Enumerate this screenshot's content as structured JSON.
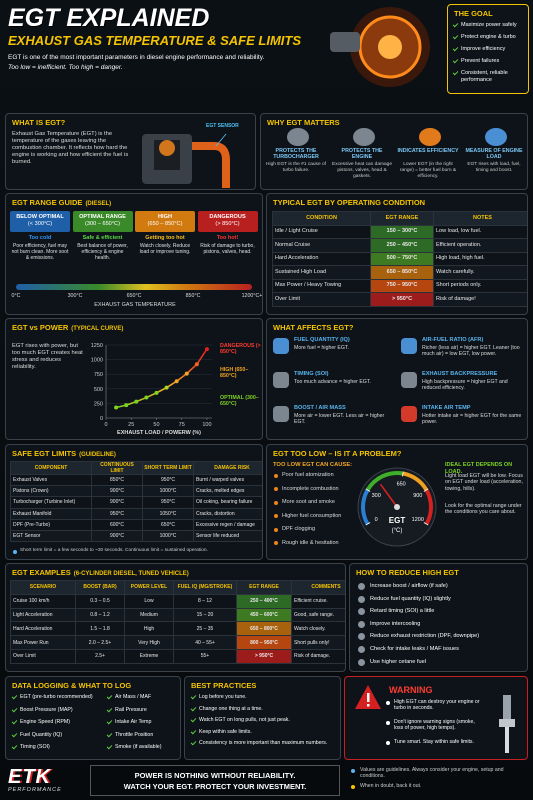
{
  "header": {
    "title": "EGT EXPLAINED",
    "subtitle": "EXHAUST GAS TEMPERATURE & SAFE LIMITS",
    "intro": "EGT is one of the most important parameters in diesel engine performance and reliability.",
    "tagline": "Too low = inefficient. Too high = danger."
  },
  "goal": {
    "title": "THE GOAL",
    "items": [
      "Maximize power safely",
      "Protect engine & turbo",
      "Improve efficiency",
      "Prevent failures",
      "Consistent, reliable performance"
    ]
  },
  "what_is": {
    "title": "WHAT IS EGT?",
    "text": "Exhaust Gas Temperature (EGT) is the temperature of the gases leaving the combustion chamber. It reflects how hard the engine is working and how efficient the fuel is burned.",
    "sensor_label": "EGT SENSOR"
  },
  "why_matters": {
    "title": "WHY EGT MATTERS",
    "items": [
      {
        "title": "PROTECTS THE TURBOCHARGER",
        "text": "High EGT is the #1 cause of turbo failure."
      },
      {
        "title": "PROTECTS THE ENGINE",
        "text": "Excessive heat can damage pistons, valves, head & gaskets."
      },
      {
        "title": "INDICATES EFFICIENCY",
        "text": "Lower EGT (in the right range) = better fuel burn & efficiency."
      },
      {
        "title": "MEASURE OF ENGINE LOAD",
        "text": "EGT rises with load, fuel, timing and boost."
      }
    ]
  },
  "range_guide": {
    "title": "EGT RANGE GUIDE",
    "qualifier": "(DIESEL)",
    "columns": [
      {
        "name": "BELOW OPTIMAL",
        "range": "(< 300°C)",
        "status": "Too cold",
        "text": "Poor efficiency, fuel may not burn clean. More soot & emissions.",
        "color": "#1f5fa8"
      },
      {
        "name": "OPTIMAL RANGE",
        "range": "(300 – 650°C)",
        "status": "Safe & efficient",
        "text": "Best balance of power, efficiency & engine health.",
        "color": "#3a8a2a"
      },
      {
        "name": "HIGH",
        "range": "(650 – 850°C)",
        "status": "Getting too hot",
        "text": "Watch closely. Reduce load or improve tuning.",
        "color": "#d07a10"
      },
      {
        "name": "DANGEROUS",
        "range": "(> 850°C)",
        "status": "Too hot!",
        "text": "Risk of damage to turbo, pistons, valves, head.",
        "color": "#b82020"
      }
    ],
    "scale_labels": [
      "0°C",
      "300°C",
      "650°C",
      "850°C",
      "1200°C+"
    ],
    "axis_label": "EXHAUST GAS TEMPERATURE"
  },
  "typical_egt": {
    "title": "TYPICAL EGT BY OPERATING CONDITION",
    "headers": [
      "CONDITION",
      "EGT RANGE",
      "NOTES"
    ],
    "rows": [
      [
        "Idle / Light Cruise",
        "150 – 300°C",
        "Low load, low fuel."
      ],
      [
        "Normal Cruise",
        "250 – 450°C",
        "Efficient operation."
      ],
      [
        "Hard Acceleration",
        "500 – 750°C",
        "High load, high fuel."
      ],
      [
        "Sustained High Load",
        "650 – 850°C",
        "Watch carefully."
      ],
      [
        "Max Power / Heavy Towing",
        "750 – 950°C",
        "Short periods only."
      ],
      [
        "Over Limit",
        "> 950°C",
        "Risk of damage!"
      ]
    ],
    "range_colors": [
      "#2d6a26",
      "#2d6a26",
      "#3d7a22",
      "#a8620e",
      "#b5460f",
      "#9c1c1c"
    ]
  },
  "chart_data": {
    "type": "line",
    "title": "EGT vs POWER",
    "subtitle": "(TYPICAL CURVE)",
    "description": "EGT rises with power, but too much EGT creates heat stress and reduces reliability.",
    "x": [
      10,
      20,
      30,
      40,
      50,
      60,
      70,
      80,
      90,
      100
    ],
    "values": [
      180,
      220,
      280,
      350,
      430,
      520,
      630,
      760,
      920,
      1180
    ],
    "point_colors": [
      "#7ed321",
      "#7ed321",
      "#7ed321",
      "#7ed321",
      "#7ed321",
      "#a8d820",
      "#f5a623",
      "#f5a623",
      "#f06a1a",
      "#e02020"
    ],
    "xlim": [
      0,
      105
    ],
    "ylim": [
      0,
      1250
    ],
    "xticks": [
      0,
      25,
      50,
      75,
      100
    ],
    "yticks": [
      0,
      250,
      500,
      750,
      1000,
      1250
    ],
    "xlabel": "EXHAUST LOAD / POWERW (%)",
    "annotations": [
      {
        "text": "DANGEROUS (> 850°C)",
        "color": "#ff3b30"
      },
      {
        "text": "HIGH (650–850°C)",
        "color": "#f5a623"
      },
      {
        "text": "OPTIMAL (300–650°C)",
        "color": "#7ed321"
      }
    ]
  },
  "affects": {
    "title": "WHAT AFFECTS EGT?",
    "items": [
      {
        "title": "FUEL QUANTITY (IQ)",
        "text": "More fuel = higher EGT."
      },
      {
        "title": "TIMING (SOI)",
        "text": "Too much advance = higher EGT."
      },
      {
        "title": "BOOST / AIR MASS",
        "text": "More air = lower EGT. Less air = higher EGT."
      },
      {
        "title": "AIR-FUEL RATIO (AFR)",
        "text": "Richer (less air) = higher EGT. Leaner (too much air) = low EGT, low power."
      },
      {
        "title": "EXHAUST BACKPRESSURE",
        "text": "High backpressure = higher EGT and reduced efficiency."
      },
      {
        "title": "INTAKE AIR TEMP",
        "text": "Hotter intake air = higher EGT for the same power."
      }
    ]
  },
  "safe_limits": {
    "title": "SAFE EGT LIMITS",
    "qualifier": "(GUIDELINE)",
    "headers": [
      "COMPONENT",
      "CONTINUOUS LIMIT",
      "SHORT TERM LIMIT",
      "DAMAGE RISK"
    ],
    "rows": [
      [
        "Exhaust Valves",
        "850°C",
        "950°C",
        "Burnt / warped valves"
      ],
      [
        "Pistons (Crown)",
        "900°C",
        "1000°C",
        "Cracks, melted edges"
      ],
      [
        "Turbocharger (Turbine Inlet)",
        "900°C",
        "950°C",
        "Oil coking, bearing failure"
      ],
      [
        "Exhaust Manifold",
        "950°C",
        "1050°C",
        "Cracks, distortion"
      ],
      [
        "DPF (Pre-Turbo)",
        "600°C",
        "650°C",
        "Excessive regen / damage"
      ],
      [
        "EGT Sensor",
        "900°C",
        "1000°C",
        "Sensor life reduced"
      ]
    ],
    "note": "Short term limit = a few seconds to ~30 seconds. Continuous limit = sustained operation."
  },
  "too_low": {
    "title": "EGT TOO LOW – IS IT A PROBLEM?",
    "causes_title": "TOO LOW EGT CAN CAUSE:",
    "causes": [
      "Poor fuel atomization",
      "Incomplete combustion",
      "More soot and smoke",
      "Higher fuel consumption",
      "DPF clogging",
      "Rough idle & hesitation"
    ],
    "gauge_ticks": [
      0,
      300,
      650,
      900,
      1200
    ],
    "gauge_colors": [
      "#2a7fd4",
      "#3fae2a",
      "#f0a020",
      "#d42020"
    ],
    "gauge_value": 420,
    "gauge_title": "EGT",
    "gauge_unit": "(°C)",
    "right_title": "IDEAL EGT DEPENDS ON LOAD.",
    "right_texts": [
      "Light load EGT will be low. Focus on EGT under load (acceleration, towing, hills).",
      "Look for the optimal range under the conditions you care about."
    ]
  },
  "examples": {
    "title": "EGT EXAMPLES",
    "qualifier": "(6-CYLINDER DIESEL, TUNED VEHICLE)",
    "headers": [
      "SCENARIO",
      "BOOST (BAR)",
      "POWER LEVEL",
      "FUEL IQ (MG/STROKE)",
      "EGT RANGE",
      "COMMENTS"
    ],
    "rows": [
      [
        "Cruise 100 km/h",
        "0.3 – 0.5",
        "Low",
        "8 – 12",
        "250 – 400°C",
        "Efficient cruise."
      ],
      [
        "Light Acceleration",
        "0.8 – 1.2",
        "Medium",
        "15 – 20",
        "450 – 600°C",
        "Good, safe range."
      ],
      [
        "Hard Acceleration",
        "1.5 – 1.8",
        "High",
        "25 – 35",
        "650 – 800°C",
        "Watch closely."
      ],
      [
        "Max Power Run",
        "2.0 – 2.5+",
        "Very High",
        "40 – 55+",
        "800 – 950°C",
        "Short pulls only!"
      ],
      [
        "Over Limit",
        "2.5+",
        "Extreme",
        "55+",
        "> 950°C",
        "Risk of damage."
      ]
    ],
    "range_colors": [
      "#2d6a26",
      "#3d7a22",
      "#a8620e",
      "#b5460f",
      "#9c1c1c"
    ]
  },
  "reduce": {
    "title": "HOW TO REDUCE HIGH EGT",
    "items": [
      "Increase boost / airflow (if safe)",
      "Reduce fuel quantity (IQ) slightly",
      "Retard timing (SOI) a little",
      "Improve intercooling",
      "Reduce exhaust restriction (DPF, downpipe)",
      "Check for intake leaks / MAF issues",
      "Use higher cetane fuel"
    ]
  },
  "logging": {
    "title": "DATA LOGGING & WHAT TO LOG",
    "col1": [
      "EGT (pre-turbo recommended)",
      "Boost Pressure (MAP)",
      "Engine Speed (RPM)",
      "Fuel Quantity (IQ)",
      "Timing (SOI)"
    ],
    "col2": [
      "Air Mass / MAF",
      "Rail Pressure",
      "Intake Air Temp",
      "Throttle Position",
      "Smoke (if available)"
    ]
  },
  "best": {
    "title": "BEST PRACTICES",
    "items": [
      "Log before you tune.",
      "Change one thing at a time.",
      "Watch EGT on long pulls, not just peak.",
      "Keep within safe limits.",
      "Consistency is more important than maximum numbers."
    ]
  },
  "warning": {
    "title": "WARNING",
    "items": [
      "High EGT can destroy your engine or turbo in seconds.",
      "Don't ignore warning signs (smoke, loss of power, high temps).",
      "Tune smart. Stay within safe limits."
    ]
  },
  "footer": {
    "logo": "ETK",
    "logo_sub": "PERFORMANCE",
    "slogan1": "POWER IS NOTHING WITHOUT RELIABILITY.",
    "slogan2": "WATCH YOUR EGT. PROTECT YOUR INVESTMENT.",
    "notes": [
      "Values are guidelines. Always consider your engine, setup and conditions.",
      "When in doubt, back it out."
    ]
  }
}
